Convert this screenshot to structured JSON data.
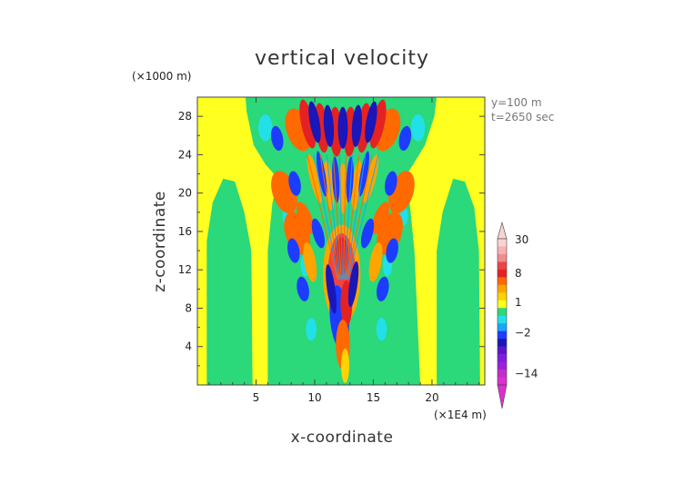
{
  "chart_data": {
    "type": "heatmap",
    "title": "vertical velocity",
    "xlabel": "x-coordinate",
    "ylabel": "z-coordinate",
    "x_unit": "(×1E4 m)",
    "y_unit": "(×1000 m)",
    "xlim": [
      0,
      24.5
    ],
    "ylim": [
      0,
      30
    ],
    "xticks": [
      5,
      10,
      15,
      20
    ],
    "yticks": [
      4,
      8,
      12,
      16,
      20,
      24,
      28
    ],
    "annotation_lines": [
      "y=100 m",
      "t=2650 sec"
    ],
    "colorbar": {
      "labels": [
        "30",
        "8",
        "1",
        "−2",
        "−14"
      ],
      "label_values": [
        30,
        8,
        1,
        -2,
        -14
      ],
      "levels": [
        {
          "value": 30,
          "color": "#f9d3d3"
        },
        {
          "value": 22,
          "color": "#f8b1b1"
        },
        {
          "value": 14,
          "color": "#f28c8c"
        },
        {
          "value": 10,
          "color": "#ee4444"
        },
        {
          "value": 8,
          "color": "#e52222"
        },
        {
          "value": 6,
          "color": "#ff6a00"
        },
        {
          "value": 4,
          "color": "#ffa500"
        },
        {
          "value": 2,
          "color": "#ffd200"
        },
        {
          "value": 1,
          "color": "#ffff20"
        },
        {
          "value": 0,
          "color": "#2bd87a"
        },
        {
          "value": -1,
          "color": "#22e0e8"
        },
        {
          "value": -2,
          "color": "#1aa5ff"
        },
        {
          "value": -4,
          "color": "#1c3cff"
        },
        {
          "value": -6,
          "color": "#1a16b8"
        },
        {
          "value": -8,
          "color": "#5b16c9"
        },
        {
          "value": -10,
          "color": "#7a1ee0"
        },
        {
          "value": -12,
          "color": "#9c1fd9"
        },
        {
          "value": -14,
          "color": "#c42bc9"
        },
        {
          "value": -18,
          "color": "#dd2fd0"
        }
      ]
    },
    "field_regions": [
      {
        "kind": "background",
        "value": 1,
        "color": "#ffff20"
      },
      {
        "kind": "plume_body",
        "value": 0,
        "color": "#2bd87a"
      },
      {
        "kind": "side_lobes",
        "value": 0,
        "color": "#2bd87a"
      },
      {
        "kind": "positive_cells",
        "value": 6,
        "color": "#ff6a00"
      },
      {
        "kind": "negative_cells",
        "value": -4,
        "color": "#1c3cff"
      },
      {
        "kind": "core_updraft",
        "value": 10,
        "color": "#ee4444"
      }
    ]
  }
}
